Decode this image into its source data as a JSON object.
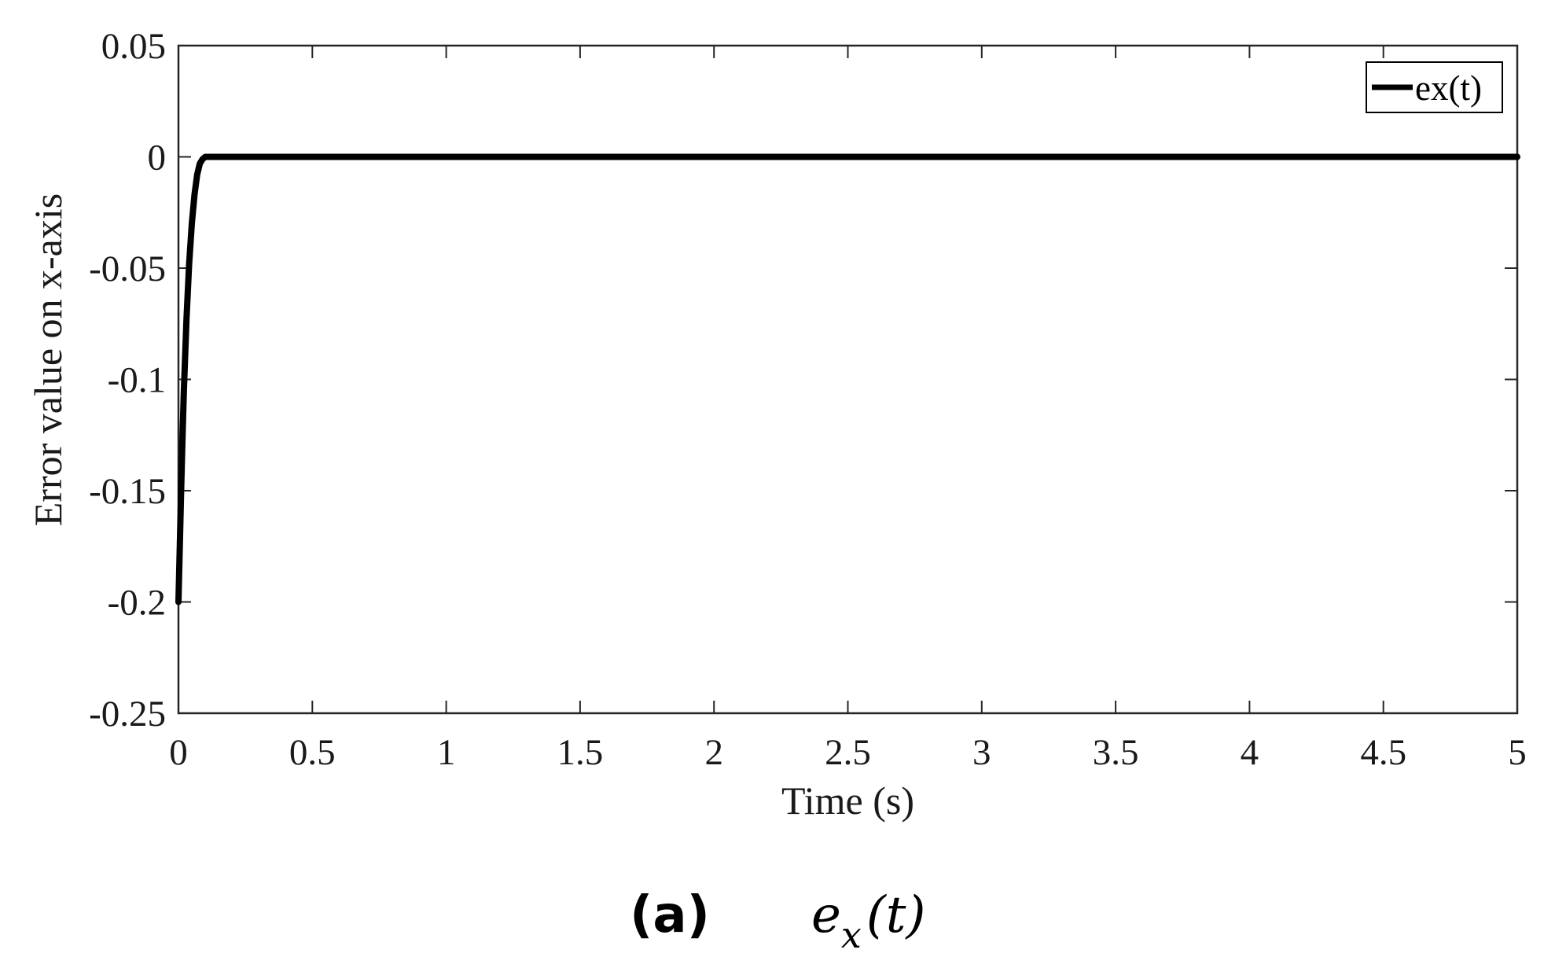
{
  "chart_data": {
    "type": "line",
    "title": "",
    "xlabel": "Time (s)",
    "ylabel": "Error value on x-axis",
    "xlim": [
      0,
      5
    ],
    "ylim": [
      -0.25,
      0.05
    ],
    "x_ticks": [
      0,
      0.5,
      1,
      1.5,
      2,
      2.5,
      3,
      3.5,
      4,
      4.5,
      5
    ],
    "x_tick_labels": [
      "0",
      "0.5",
      "1",
      "1.5",
      "2",
      "2.5",
      "3",
      "3.5",
      "4",
      "4.5",
      "5"
    ],
    "y_ticks": [
      0.05,
      0,
      -0.05,
      -0.1,
      -0.15,
      -0.2,
      -0.25
    ],
    "y_tick_labels": [
      "0.05",
      "0",
      "-0.05",
      "-0.1",
      "-0.15",
      "-0.2",
      "-0.25"
    ],
    "grid": false,
    "legend_position": "top-right",
    "series": [
      {
        "name": "ex(t)",
        "color": "#000000",
        "x": [
          0,
          0.005,
          0.01,
          0.015,
          0.02,
          0.03,
          0.04,
          0.05,
          0.06,
          0.07,
          0.08,
          0.09,
          0.1,
          0.12,
          0.15,
          0.2,
          0.5,
          1,
          2,
          3,
          4,
          5
        ],
        "y": [
          -0.2,
          -0.175,
          -0.15,
          -0.127,
          -0.106,
          -0.073,
          -0.048,
          -0.03,
          -0.017,
          -0.008,
          -0.003,
          -0.001,
          0,
          0,
          0,
          0,
          0,
          0,
          0,
          0,
          0,
          0
        ]
      }
    ]
  },
  "caption": {
    "label": "(a)",
    "math_base": "e",
    "math_sub": "x",
    "math_arg": "(t)"
  }
}
